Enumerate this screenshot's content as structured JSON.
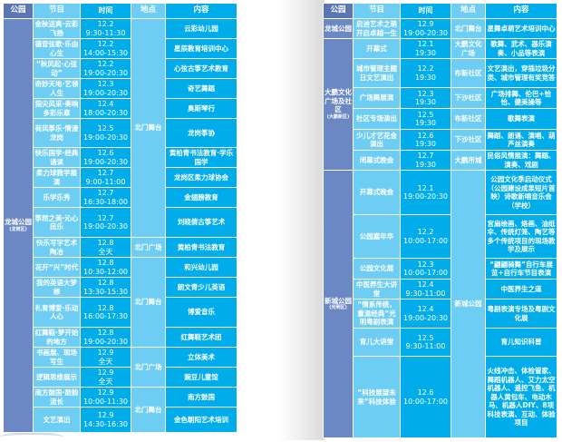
{
  "headers": [
    "公园",
    "节目",
    "时间",
    "地点",
    "内容"
  ],
  "colors": {
    "park": "#6b88c4",
    "header_park": "#5b76b3",
    "light_blue": "#6dcdf3",
    "bright_blue": "#00adea"
  },
  "left": {
    "parks": [
      {
        "name": "龙城公园",
        "district": "(龙岗区)",
        "locations": [
          {
            "name": "北门舞台",
            "rows": [
              {
                "program": "金秋送爽·云彩飞扬",
                "date": "12.2",
                "time": "9:30-11:30",
                "content": "云彩幼儿园"
              },
              {
                "program": "德音弦歌·乐由心生",
                "date": "12.2",
                "time": "14:00-15:30",
                "content": "星辰教育培训中心"
              },
              {
                "program": "“秋风起·心弦动”",
                "date": "12.2",
                "time": "19:00-20:30",
                "content": "心弦古筝艺术教育"
              },
              {
                "program": "奇妙天地·艺领人生",
                "date": "12.3",
                "time": "19:00-20:30",
                "content": "奇艺舞蹈"
              },
              {
                "program": "指尖风采·奏响多彩乐章",
                "date": "12.4",
                "time": "18:00-20:30",
                "content": "奥斯琴行"
              },
              {
                "program": "荷风筝乐·情漫龙岗",
                "date": "12.5",
                "time": "19:00-20:30",
                "content": "龙岗筝协"
              },
              {
                "program": "快乐国学·经典诵读",
                "date": "12.6",
                "time": "19:00-20:30",
                "content": "黄柏青书法教育·学乐国学"
              },
              {
                "program": "柔力球教学展演",
                "date": "12.7",
                "time": "9:00-11:00",
                "content": "龙岗区柔力球协会"
              },
              {
                "program": "乐学乐秀",
                "date": "12.7",
                "time": "16:30-18:00",
                "content": "金翅膀教育"
              },
              {
                "program": "筝然之美·沁心民乐",
                "date": "12.7",
                "time": "19:00-20:30",
                "content": "刘晓倩古筝艺术"
              }
            ]
          },
          {
            "name": "北门广场",
            "rows": [
              {
                "program": "快乐写字艺术陶冶",
                "date": "12.8",
                "time": "全天",
                "content": "黄柏青书法教育"
              }
            ]
          },
          {
            "name": "北门舞台",
            "rows": [
              {
                "program": "花开“兴”时代",
                "date": "12.8",
                "time": "10:30-12:00",
                "content": "和兴幼儿园"
              },
              {
                "program": "我的英语大梦想",
                "date": "12.8",
                "time": "13:30-15:30",
                "content": "朗文青少儿英语"
              },
              {
                "program": "礼育博爱·乐动人心",
                "date": "12.8",
                "time": "16:00-17:30",
                "content": "博爱音乐"
              },
              {
                "program": "红舞鞋·梦开始的地方",
                "date": "12.8",
                "time": "19:00-20:30",
                "content": "红舞鞋艺术团"
              }
            ]
          },
          {
            "name": "北门广场",
            "rows": [
              {
                "program": "书画展、现场写生",
                "date": "12.9",
                "time": "全天",
                "content": "立体美术"
              },
              {
                "program": "逻辑思维展示",
                "date": "12.9",
                "time": "全天",
                "content": "豌豆儿童馆"
              }
            ]
          },
          {
            "name": "北门舞台",
            "rows": [
              {
                "program": "南方鼓国·鼓韵流长",
                "date": "12.9",
                "time": "10:00-11:30",
                "content": "南方鼓国"
              },
              {
                "program": "文艺演出",
                "date": "12.9",
                "time": "14:30-16:30",
                "content": "金色朝阳艺术培训"
              }
            ]
          }
        ]
      }
    ]
  },
  "right": {
    "parks": [
      {
        "name": "龙城公园",
        "district": "",
        "locations": [
          {
            "name": "北门舞台",
            "rows": [
              {
                "program": "启迪艺术之萌开启卓越一生",
                "date": "12.9",
                "time": "19:00-20:30",
                "content": "星舞卓萌艺术培训中心"
              }
            ]
          }
        ]
      },
      {
        "name": "大鹏文化广场及社区",
        "district": "(大鹏新区)",
        "locations": [
          {
            "name": "大鹏文化广场",
            "rows": [
              {
                "program": "开幕式",
                "date": "12.1",
                "time": "19:30",
                "content": "歌舞、武术、器乐演奏、小品等表演"
              }
            ]
          },
          {
            "name": "布新社区",
            "rows": [
              {
                "program": "城市管理主题日文艺演出",
                "date": "12.2",
                "time": "19:30",
                "content": "文艺演出，穿插垃圾分类、城市管理有奖竞答"
              }
            ]
          },
          {
            "name": "下沙社区",
            "rows": [
              {
                "program": "广场舞展演",
                "date": "12.3",
                "time": "19:30",
                "content": "广场排舞、伦巴+恰恰、健美操等"
              }
            ]
          },
          {
            "name": "布新社区",
            "rows": [
              {
                "program": "社区专场演出",
                "date": "12.5",
                "time": "19:30",
                "content": "歌舞表演"
              }
            ]
          },
          {
            "name": "下沙社区",
            "rows": [
              {
                "program": "少儿才艺花会演出",
                "date": "12.6",
                "time": "19:30",
                "content": "舞蹈、朗诵、演唱、葫芦丝演奏"
              }
            ]
          },
          {
            "name": "大鹏所城",
            "rows": [
              {
                "program": "闭幕式晚会",
                "date": "12.7",
                "time": "19:30",
                "content": "民俗风情展演：舞蹈、演奏、戏剧"
              }
            ]
          }
        ]
      },
      {
        "name": "新城公园",
        "district": "(光明区)",
        "locations": [
          {
            "name": "新城公园",
            "rows": [
              {
                "program": "开幕式晚会",
                "date": "12.1",
                "time": "19:00-20:30",
                "content": "公园文化季启动仪式（公园建设成果短片首映）诗歌新唱音乐会（学校）"
              },
              {
                "program": "公园嘉年华",
                "date": "12.2",
                "time": "10:00-17:00",
                "content": "宫扇绘画、烙画、油纸伞、传统灯笼、陶艺等多个传统项目的现场教学及展示"
              },
              {
                "program": "公园文化展",
                "date": "12.3",
                "time": "10:00-17:00",
                "content": "“翩翩骑舞”自行车展览+自行车节目表演"
              },
              {
                "program": "中医养生大讲堂",
                "date": "12.4",
                "time": "9:30-11:00",
                "content": "中医养生之道"
              },
              {
                "program": "“情系传统，重温经典”光明粤剧表演",
                "date": "12.4",
                "time": "19:00-20:30",
                "content": "粤剧表演专场及粤剧文化展"
              },
              {
                "program": "育儿大讲堂",
                "date": "12.5",
                "time": "9:30-11:00",
                "content": "育儿知识科普"
              },
              {
                "program": "“科技展望未来”科技体验",
                "date": "12.6",
                "time": "10:00-17:00",
                "content": "火线冲击、体检管家、舞蹈机器人、艾力太空机器人、遥控飞鱼、机器人黄包车、电动木马、机器人DIY、8项科技表演、互动、体验项目"
              }
            ]
          }
        ]
      }
    ]
  }
}
